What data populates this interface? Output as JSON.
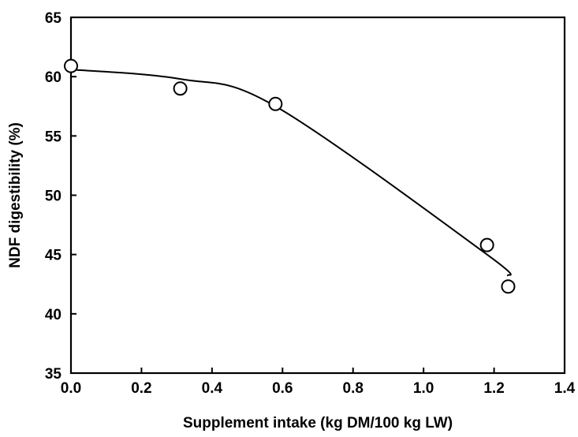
{
  "chart_data": {
    "type": "scatter",
    "title": "",
    "xlabel": "Supplement intake (kg DM/100 kg LW)",
    "ylabel": "NDF digestibility (%)",
    "xlim": [
      0.0,
      1.4
    ],
    "ylim": [
      35,
      65
    ],
    "x_ticks": [
      "0.0",
      "0.2",
      "0.4",
      "0.6",
      "0.8",
      "1.0",
      "1.2",
      "1.4"
    ],
    "y_ticks": [
      "35",
      "40",
      "45",
      "50",
      "55",
      "60",
      "65"
    ],
    "grid": false,
    "legend": "none",
    "series": [
      {
        "marker": "open-circle",
        "points": [
          {
            "x": 0.0,
            "y": 60.9
          },
          {
            "x": 0.31,
            "y": 59.0
          },
          {
            "x": 0.58,
            "y": 57.7
          },
          {
            "x": 1.18,
            "y": 45.8
          },
          {
            "x": 1.24,
            "y": 42.3
          }
        ]
      }
    ],
    "trendline": {
      "kind": "quadratic fit",
      "x_range": [
        0.0,
        1.24
      ],
      "points": [
        {
          "x": 0.0,
          "y": 60.6
        },
        {
          "x": 0.31,
          "y": 59.8
        },
        {
          "x": 0.58,
          "y": 57.5
        },
        {
          "x": 1.18,
          "y": 45.0
        },
        {
          "x": 1.24,
          "y": 43.2
        }
      ]
    },
    "colors": {
      "axis": "#000000",
      "marker_fill": "#ffffff",
      "line": "#000000"
    }
  }
}
